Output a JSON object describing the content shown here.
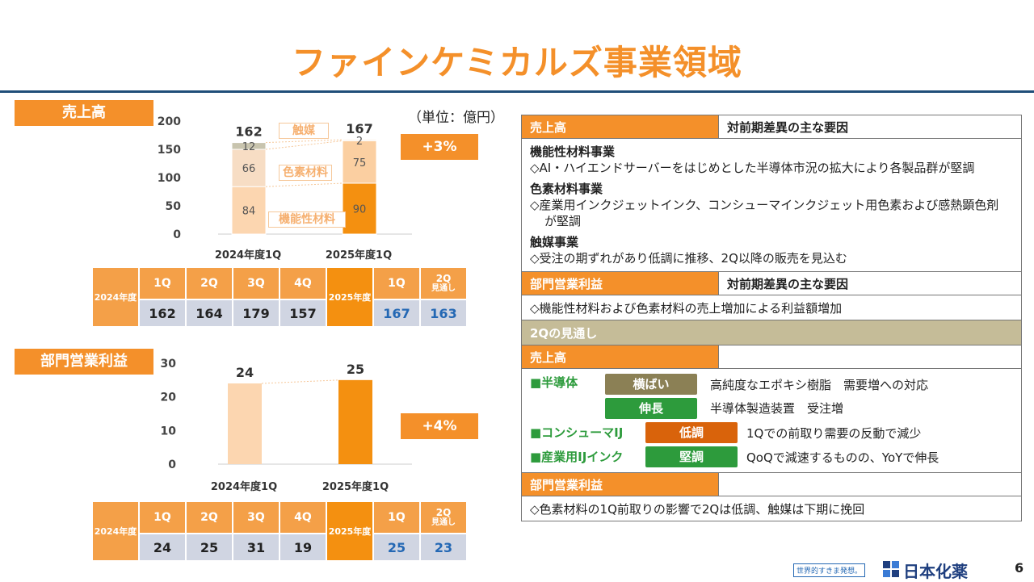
{
  "title": "ファインケミカルズ事業領域",
  "unit": "（単位：億円）",
  "sales": {
    "label": "売上高",
    "badge": "+3%",
    "legend": [
      "触媒",
      "色素材料",
      "機能性材料"
    ],
    "years": [
      "2024年度1Q",
      "2025年度1Q"
    ],
    "totals": [
      "162",
      "167"
    ],
    "ticks": [
      "200",
      "150",
      "100",
      "50",
      "0"
    ]
  },
  "profit": {
    "label": "部門営業利益",
    "badge": "+4%",
    "years": [
      "2024年度1Q",
      "2025年度1Q"
    ],
    "values_text": [
      "24",
      "25"
    ],
    "ticks": [
      "30",
      "20",
      "10",
      "0"
    ]
  },
  "sales_quarter_table": {
    "fy2024": "2024年度",
    "fy2025": "2025年度",
    "quarters": [
      "1Q",
      "2Q",
      "3Q",
      "4Q"
    ],
    "q1": "1Q",
    "q2_line1": "2Q",
    "q2_line2": "見通し",
    "v2024": [
      "162",
      "164",
      "179",
      "157"
    ],
    "v2025": [
      "167",
      "163"
    ]
  },
  "profit_quarter_table": {
    "fy2024": "2024年度",
    "fy2025": "2025年度",
    "quarters": [
      "1Q",
      "2Q",
      "3Q",
      "4Q"
    ],
    "q1": "1Q",
    "q2_line1": "2Q",
    "q2_line2": "見通し",
    "v2024": [
      "24",
      "25",
      "31",
      "19"
    ],
    "v2025": [
      "25",
      "23"
    ]
  },
  "right": {
    "sales_head": "売上高",
    "factor_head": "対前期差異の主な要因",
    "func_title": "機能性材料事業",
    "func_text": "◇AI・ハイエンドサーバーをはじめとした半導体市況の拡大により各製品群が堅調",
    "dye_title": "色素材料事業",
    "dye_text1": "◇産業用インクジェットインク、コンシューマインクジェット用色素および感熱顕色剤",
    "dye_text2": "が堅調",
    "cat_title": "触媒事業",
    "cat_text": "◇受注の期ずれがあり低調に推移、2Q以降の販売を見込む",
    "profit_head": "部門営業利益",
    "profit_factor_head": "対前期差異の主な要因",
    "profit_text": "◇機能性材料および色素材料の売上増加による利益額増加",
    "outlook_head": "2Qの見通し",
    "out_sales_head": "売上高",
    "semi_label": "■半導体",
    "semi_badge1": "横ばい",
    "semi_text1": "高純度なエポキシ樹脂　需要増への対応",
    "semi_badge2": "伸長",
    "semi_text2": "半導体製造装置　受注増",
    "cons_label": "■コンシューマIJ",
    "cons_badge": "低調",
    "cons_text": "1Qでの前取り需要の反動で減少",
    "ind_label": "■産業用IJインク",
    "ind_badge": "堅調",
    "ind_text": "QoQで減速するものの、YoYで伸長",
    "out_profit_head": "部門営業利益",
    "out_profit_text": "◇色素材料の1Q前取りの影響で2Qは低調、触媒は下期に挽回"
  },
  "footer": {
    "tagline": "世界的すきま発想。",
    "logo": "日本化薬",
    "page": "6"
  },
  "colors": {
    "accent": "#f4902a",
    "navy": "#1f4e79",
    "green": "#2d9b3c",
    "olive": "#8b8055",
    "dark_orange": "#d9630b"
  },
  "chart_data": [
    {
      "type": "bar",
      "stacked": true,
      "title": "売上高",
      "categories": [
        "2024年度1Q",
        "2025年度1Q"
      ],
      "series": [
        {
          "name": "機能性材料",
          "values": [
            84,
            90
          ]
        },
        {
          "name": "色素材料",
          "values": [
            66,
            75
          ]
        },
        {
          "name": "触媒",
          "values": [
            12,
            2
          ]
        }
      ],
      "totals": [
        162,
        167
      ],
      "ylim": [
        0,
        200
      ]
    },
    {
      "type": "bar",
      "title": "部門営業利益",
      "categories": [
        "2024年度1Q",
        "2025年度1Q"
      ],
      "values": [
        24,
        25
      ],
      "ylim": [
        0,
        30
      ]
    }
  ]
}
